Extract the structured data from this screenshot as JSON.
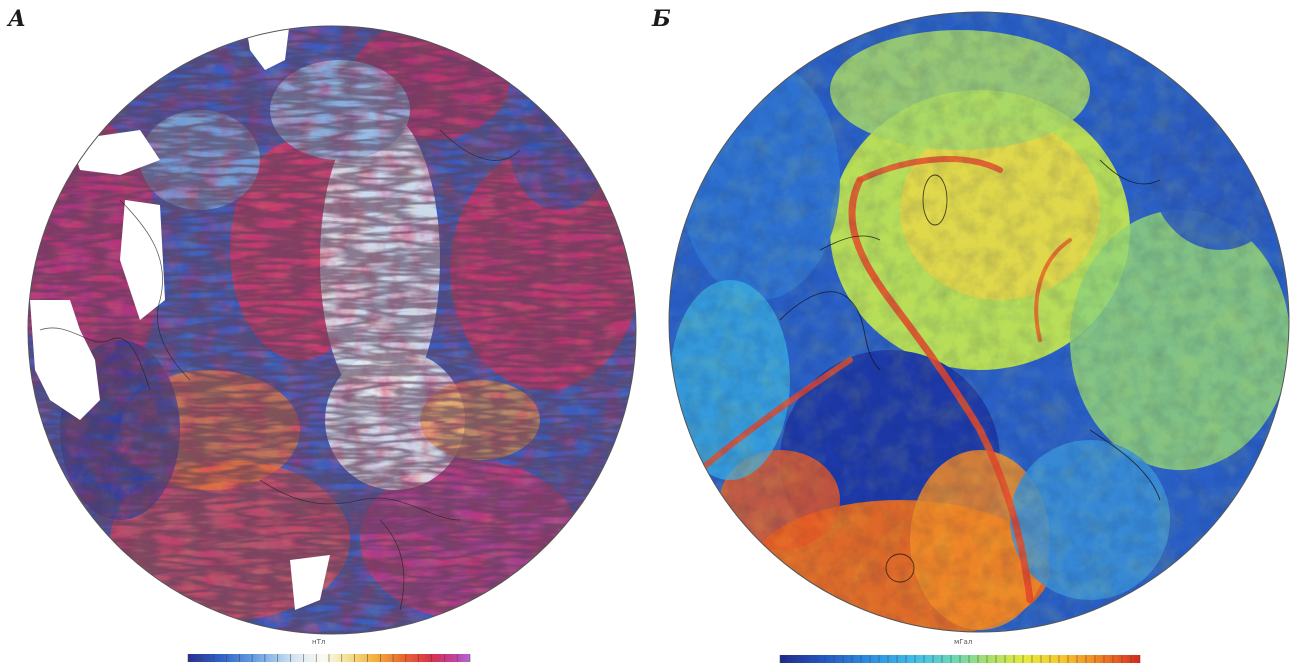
{
  "figure": {
    "panels": [
      {
        "id": "A",
        "label": "А",
        "map_type": "magnetic-anomaly-map",
        "colorbar_unit": "нТл",
        "palette": [
          "#2a2f8f",
          "#2f64c8",
          "#6fa6e4",
          "#d6e6f4",
          "#fbfbf2",
          "#f4e39a",
          "#f5b23c",
          "#ea6a2c",
          "#d8324a",
          "#c2409a",
          "#b067d6"
        ]
      },
      {
        "id": "B",
        "label": "Б",
        "map_type": "gravity-anomaly-map",
        "colorbar_unit": "мГал",
        "palette": [
          "#1e2a8c",
          "#2356c4",
          "#2c8fe0",
          "#42c0e8",
          "#6ad7b7",
          "#a8e06a",
          "#e6ea3c",
          "#f6c830",
          "#f39426",
          "#e65a22",
          "#d22a1c"
        ]
      }
    ]
  }
}
